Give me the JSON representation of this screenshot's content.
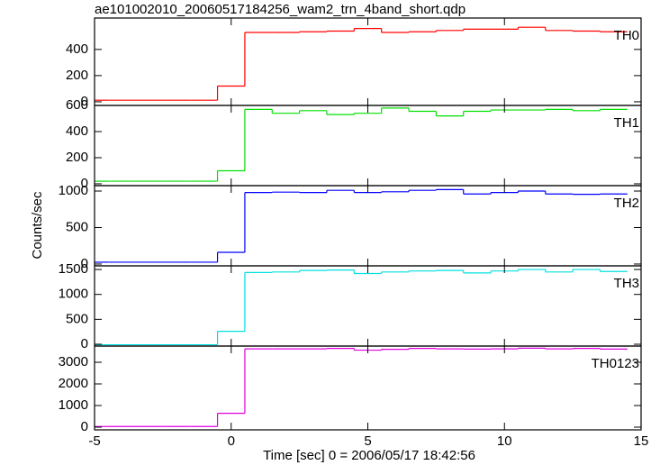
{
  "figure": {
    "title": "ae101002010_20060517184256_wam2_trn_4band_short.qdp",
    "xlabel": "Time [sec] 0 = 2006/05/17 18:42:56",
    "ylabel": "Counts/sec"
  },
  "chart_data": [
    {
      "type": "step",
      "label": "TH0",
      "color": "#ff0000",
      "x": [
        -5,
        -4,
        -3,
        -2,
        -1,
        0,
        1,
        2,
        3,
        4,
        5,
        6,
        7,
        8,
        9,
        10,
        11,
        12,
        13,
        14
      ],
      "values": [
        12,
        12,
        12,
        12,
        12,
        120,
        530,
        530,
        535,
        540,
        560,
        530,
        535,
        545,
        555,
        555,
        570,
        545,
        540,
        535
      ],
      "xlim": [
        -5,
        15
      ],
      "xticks": [
        -5,
        0,
        5,
        10,
        15
      ],
      "ylim": [
        -28,
        640
      ],
      "yticks": [
        0,
        200,
        400
      ]
    },
    {
      "type": "step",
      "label": "TH1",
      "color": "#00e000",
      "x": [
        -5,
        -4,
        -3,
        -2,
        -1,
        0,
        1,
        2,
        3,
        4,
        5,
        6,
        7,
        8,
        9,
        10,
        11,
        12,
        13,
        14
      ],
      "values": [
        20,
        20,
        20,
        20,
        20,
        100,
        570,
        540,
        560,
        530,
        540,
        580,
        555,
        520,
        555,
        565,
        565,
        570,
        560,
        570
      ],
      "xlim": [
        -5,
        15
      ],
      "xticks": [
        -5,
        0,
        5,
        10,
        15
      ],
      "ylim": [
        -14,
        600
      ],
      "yticks": [
        0,
        200,
        400,
        600
      ]
    },
    {
      "type": "step",
      "label": "TH2",
      "color": "#0000ff",
      "x": [
        -5,
        -4,
        -3,
        -2,
        -1,
        0,
        1,
        2,
        3,
        4,
        5,
        6,
        7,
        8,
        9,
        10,
        11,
        12,
        13,
        14
      ],
      "values": [
        25,
        25,
        25,
        25,
        25,
        160,
        980,
        985,
        980,
        1010,
        980,
        990,
        1010,
        1020,
        960,
        980,
        1000,
        960,
        955,
        960
      ],
      "xlim": [
        -5,
        15
      ],
      "xticks": [
        -5,
        0,
        5,
        10,
        15
      ],
      "ylim": [
        -25,
        1074
      ],
      "yticks": [
        0,
        500,
        1000
      ]
    },
    {
      "type": "step",
      "label": "TH3",
      "color": "#00e0e0",
      "x": [
        -5,
        -4,
        -3,
        -2,
        -1,
        0,
        1,
        2,
        3,
        4,
        5,
        6,
        7,
        8,
        9,
        10,
        11,
        12,
        13,
        14
      ],
      "values": [
        -10,
        -10,
        -10,
        -10,
        -10,
        260,
        1440,
        1450,
        1480,
        1490,
        1420,
        1450,
        1470,
        1480,
        1430,
        1470,
        1500,
        1450,
        1500,
        1460
      ],
      "xlim": [
        -5,
        15
      ],
      "xticks": [
        -5,
        0,
        5,
        10,
        15
      ],
      "ylim": [
        -36,
        1573
      ],
      "yticks": [
        0,
        500,
        1000,
        1500
      ]
    },
    {
      "type": "step",
      "label": "TH0123",
      "color": "#e000e0",
      "x": [
        -5,
        -4,
        -3,
        -2,
        -1,
        0,
        1,
        2,
        3,
        4,
        5,
        6,
        7,
        8,
        9,
        10,
        11,
        12,
        13,
        14
      ],
      "values": [
        30,
        30,
        30,
        30,
        30,
        640,
        3620,
        3620,
        3620,
        3640,
        3560,
        3600,
        3640,
        3620,
        3610,
        3620,
        3650,
        3620,
        3640,
        3610
      ],
      "xlim": [
        -5,
        15
      ],
      "xticks": [
        -5,
        0,
        5,
        10,
        15
      ],
      "ylim": [
        -125,
        3750
      ],
      "yticks": [
        0,
        1000,
        2000,
        3000
      ]
    }
  ]
}
